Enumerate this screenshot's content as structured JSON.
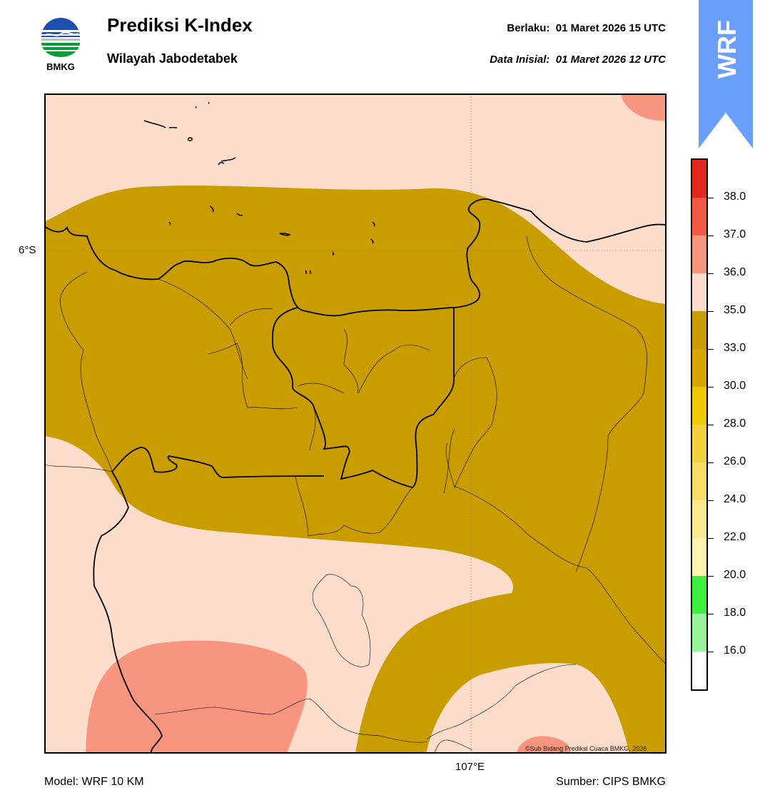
{
  "header": {
    "logo_text": "BMKG",
    "title": "Prediksi K-Index",
    "subtitle": "Wilayah Jabodetabek",
    "valid_label": "Berlaku:",
    "valid_value": "01 Maret 2026 15 UTC",
    "init_label": "Data Inisial:",
    "init_value": "01 Maret 2026 12 UTC"
  },
  "badge": {
    "text": "WRF",
    "color": "#6a9eff"
  },
  "map": {
    "lat_label": "6°S",
    "lon_label": "107°E",
    "copyright": "©Sub Bidang Prediksi Cuaca BMKG, 2026",
    "colors": {
      "background": "#fcdcca",
      "band": "#c99c00",
      "high": "#f8957f",
      "coast": "#000000"
    }
  },
  "colorbar": {
    "ticks": [
      "38.0",
      "37.0",
      "36.0",
      "35.0",
      "33.0",
      "30.0",
      "28.0",
      "26.0",
      "24.0",
      "22.0",
      "20.0",
      "18.0",
      "16.0"
    ],
    "segments": [
      "#e2281c",
      "#f25a44",
      "#f8957f",
      "#fcdcca",
      "#c99c00",
      "#d9a600",
      "#f0c800",
      "#f2d23c",
      "#f6de66",
      "#fbe98e",
      "#fef4b2",
      "#3ef03e",
      "#9af59a",
      "#ffffff"
    ]
  },
  "footer": {
    "model": "Model: WRF 10 KM",
    "source": "Sumber: CIPS BMKG"
  }
}
